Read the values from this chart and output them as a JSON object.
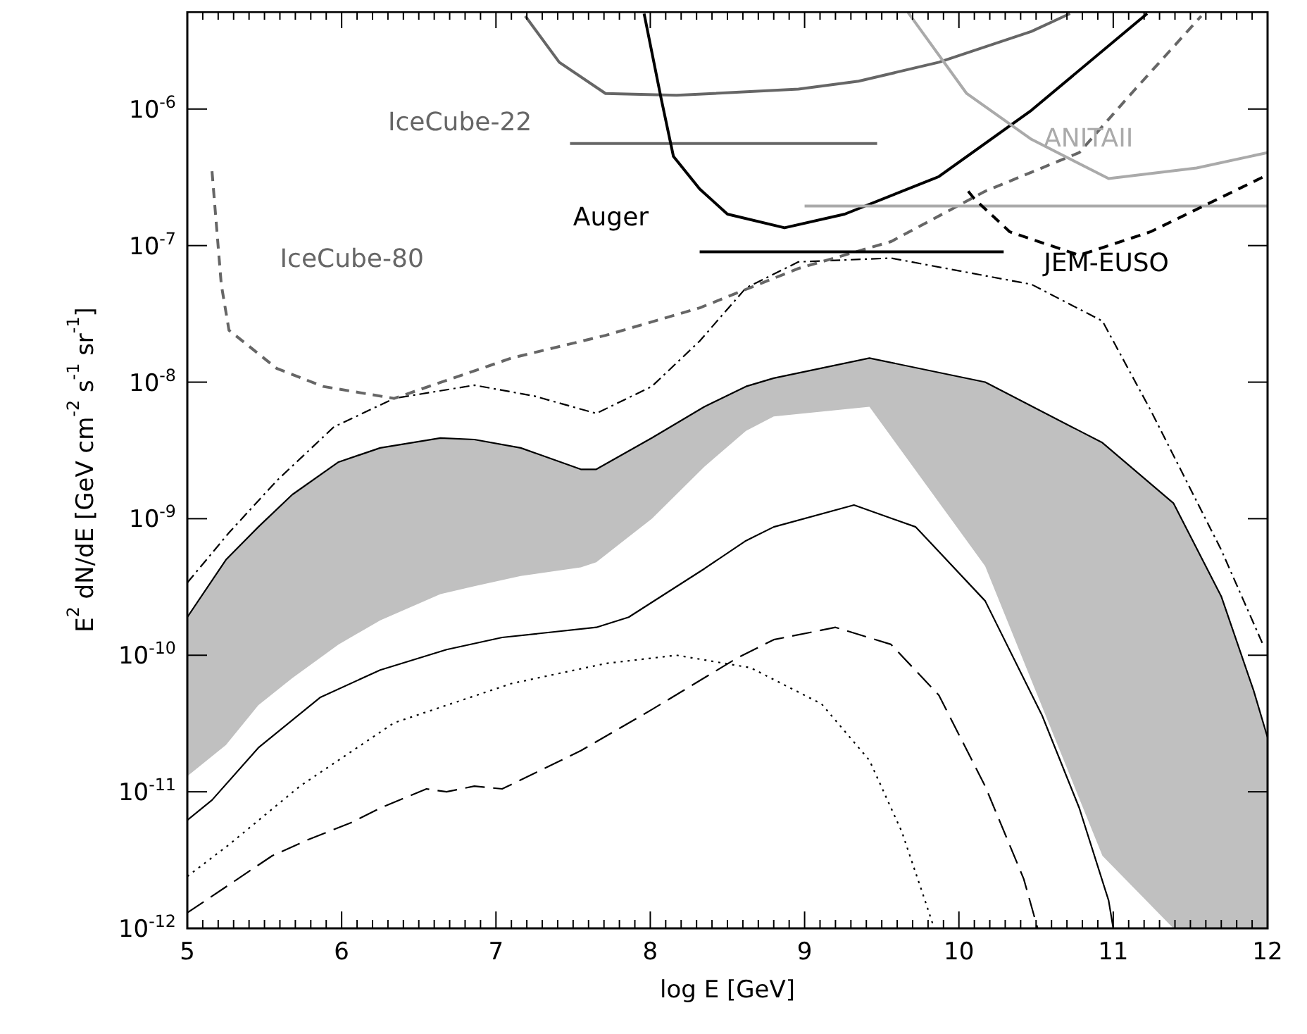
{
  "chart_data": {
    "type": "line",
    "xlabel": "log E [GeV]",
    "ylabel": "E$^{2}$ dN/dE [GeV cm$^{-2}$ s$^{-1}$ sr$^{-1}$]",
    "xlim": [
      5,
      12
    ],
    "xticks": [
      5,
      {
        "value": 5.1,
        "label": null
      },
      {
        "value": 5.2,
        "label": null
      },
      {
        "value": 5.3,
        "label": null
      },
      {
        "value": 5.4,
        "label": null
      },
      {
        "value": 5.5,
        "label": null
      },
      {
        "value": 5.6,
        "label": null
      },
      {
        "value": 5.7,
        "label": null
      },
      {
        "value": 5.8,
        "label": null
      },
      {
        "value": 5.9,
        "label": null
      },
      6,
      {
        "value": 6.1,
        "label": null
      },
      {
        "value": 6.2,
        "label": null
      },
      {
        "value": 6.3,
        "label": null
      },
      {
        "value": 6.4,
        "label": null
      },
      {
        "value": 6.5,
        "label": null
      },
      {
        "value": 6.6,
        "label": null
      },
      {
        "value": 6.7,
        "label": null
      },
      {
        "value": 6.8,
        "label": null
      },
      {
        "value": 6.9,
        "label": null
      },
      7,
      {
        "value": 7.1,
        "label": null
      },
      {
        "value": 7.2,
        "label": null
      },
      {
        "value": 7.3,
        "label": null
      },
      {
        "value": 7.4,
        "label": null
      },
      {
        "value": 7.5,
        "label": null
      },
      {
        "value": 7.6,
        "label": null
      },
      {
        "value": 7.7,
        "label": null
      },
      {
        "value": 7.8,
        "label": null
      },
      {
        "value": 7.9,
        "label": null
      },
      8,
      {
        "value": 8.1,
        "label": null
      },
      {
        "value": 8.2,
        "label": null
      },
      {
        "value": 8.3,
        "label": null
      },
      {
        "value": 8.4,
        "label": null
      },
      {
        "value": 8.5,
        "label": null
      },
      {
        "value": 8.6,
        "label": null
      },
      {
        "value": 8.7,
        "label": null
      },
      {
        "value": 8.8,
        "label": null
      },
      {
        "value": 8.9,
        "label": null
      },
      9,
      {
        "value": 9.1,
        "label": null
      },
      {
        "value": 9.2,
        "label": null
      },
      {
        "value": 9.3,
        "label": null
      },
      {
        "value": 9.4,
        "label": null
      },
      {
        "value": 9.5,
        "label": null
      },
      {
        "value": 9.6,
        "label": null
      },
      {
        "value": 9.7,
        "label": null
      },
      {
        "value": 9.8,
        "label": null
      },
      {
        "value": 9.9,
        "label": null
      },
      10,
      {
        "value": 10.1,
        "label": null
      },
      {
        "value": 10.2,
        "label": null
      },
      {
        "value": 10.3,
        "label": null
      },
      {
        "value": 10.4,
        "label": null
      },
      {
        "value": 10.5,
        "label": null
      },
      {
        "value": 10.6,
        "label": null
      },
      {
        "value": 10.7,
        "label": null
      },
      {
        "value": 10.8,
        "label": null
      },
      {
        "value": 10.9,
        "label": null
      },
      11,
      {
        "value": 11.1,
        "label": null
      },
      {
        "value": 11.2,
        "label": null
      },
      {
        "value": 11.3,
        "label": null
      },
      {
        "value": 11.4,
        "label": null
      },
      {
        "value": 11.5,
        "label": null
      },
      {
        "value": 11.6,
        "label": null
      },
      {
        "value": 11.7,
        "label": null
      },
      {
        "value": 11.8,
        "label": null
      },
      {
        "value": 11.9,
        "label": null
      },
      12
    ],
    "ylim": [
      1e-12,
      5.2e-06
    ],
    "log": "y",
    "yticks": [
      {
        "value": 1e-12,
        "label": "10$^{-12}$"
      },
      {
        "value": 1e-11,
        "label": "10$^{-11}$"
      },
      {
        "value": 1e-10,
        "label": "10$^{-10}$"
      },
      {
        "value": 1e-09,
        "label": "10$^{-9}$"
      },
      {
        "value": 1e-08,
        "label": "10$^{-8}$"
      },
      {
        "value": 1e-07,
        "label": "10$^{-7}$"
      },
      {
        "value": 1e-06,
        "label": "10$^{-6}$"
      }
    ],
    "grid": false,
    "legend": false,
    "marker": "none",
    "series": [
      {
        "type": "line",
        "color": "#000000",
        "line_style": "solid",
        "upper": [
          1.9e-10,
          5e-10,
          8.7e-10,
          1.5e-09,
          2.6e-09,
          3.3e-09,
          3.9e-09,
          3.8e-09,
          3.3e-09,
          2.3e-09,
          2.3e-09,
          3.9e-09,
          6.6e-09,
          9.3e-09,
          1.07e-08,
          1.5e-08,
          1e-08,
          3.6e-09,
          1.3e-09,
          2.7e-10,
          5.5e-11,
          2.5e-11
        ],
        "x": [
          5,
          5.25,
          5.46,
          5.68,
          5.98,
          6.25,
          6.64,
          6.86,
          7.16,
          7.55,
          7.65,
          8.01,
          8.35,
          8.62,
          8.8,
          9.42,
          10.17,
          10.93,
          11.39,
          11.7,
          11.91,
          12
        ],
        "values": [
          1.9e-10,
          5e-10,
          8.7e-10,
          1.5e-09,
          2.6e-09,
          3.3e-09,
          3.9e-09,
          3.8e-09,
          3.3e-09,
          2.3e-09,
          2.3e-09,
          3.9e-09,
          6.6e-09,
          9.3e-09,
          1.07e-08,
          1.5e-08,
          1e-08,
          3.6e-09,
          1.3e-09,
          2.7e-10,
          5.5e-11,
          2.5e-11
        ],
        "lower": [
          1.3e-11,
          2.2e-11,
          4.3e-11,
          6.8e-11,
          1.2e-10,
          1.8e-10,
          2.8e-10,
          3.2e-10,
          3.8e-10,
          4.4e-10,
          4.8e-10,
          1e-09,
          2.4e-09,
          4.4e-09,
          5.6e-09,
          6.6e-09,
          4.5e-10,
          3.4e-12,
          1e-12,
          1e-12,
          1e-12,
          1e-12
        ]
      },
      {
        "color": "#000000",
        "line_style": "solid",
        "x": [
          5,
          5.16,
          5.46,
          5.86,
          6.25,
          6.68,
          7.04,
          7.65,
          7.86,
          8.35,
          8.62,
          8.8,
          9.32,
          9.72,
          10.17,
          10.54,
          10.78,
          10.97,
          11.0
        ],
        "values": [
          6.2e-12,
          8.7e-12,
          2.1e-11,
          4.9e-11,
          7.8e-11,
          1.1e-10,
          1.35e-10,
          1.6e-10,
          1.9e-10,
          4.3e-10,
          6.9e-10,
          8.7e-10,
          1.26e-09,
          8.7e-10,
          2.5e-10,
          3.6e-11,
          7.6e-12,
          1.6e-12,
          1e-12
        ]
      },
      {
        "color": "#000000",
        "line_style": "dotted",
        "x": [
          5,
          5.27,
          5.73,
          6.34,
          7.1,
          7.71,
          8.17,
          8.65,
          9.11,
          9.42,
          9.63,
          9.78,
          9.84
        ],
        "values": [
          2.4e-12,
          4.1e-12,
          1.1e-11,
          3.2e-11,
          6.2e-11,
          8.7e-11,
          1e-10,
          8.1e-11,
          4.4e-11,
          1.7e-11,
          5.1e-12,
          1.6e-12,
          1e-12
        ]
      },
      {
        "color": "#000000",
        "line_style": "longdash",
        "x": [
          5,
          5.55,
          5.77,
          6.07,
          6.25,
          6.55,
          6.68,
          6.86,
          7.04,
          7.55,
          8.01,
          8.56,
          8.8,
          9.2,
          9.56,
          9.87,
          10.17,
          10.42,
          10.51
        ],
        "values": [
          1.3e-12,
          3.4e-12,
          4.4e-12,
          6e-12,
          7.6e-12,
          1.05e-11,
          1e-11,
          1.1e-11,
          1.05e-11,
          2e-11,
          4e-11,
          9.5e-11,
          1.3e-10,
          1.6e-10,
          1.2e-10,
          5.1e-11,
          1.1e-11,
          2.3e-12,
          1e-12
        ]
      },
      {
        "color": "#000000",
        "line_style": "dashdot",
        "x": [
          5,
          5.27,
          5.58,
          5.95,
          6.34,
          6.86,
          7.25,
          7.65,
          8.01,
          8.32,
          8.62,
          8.96,
          9.56,
          10.47,
          10.93,
          11.24,
          11.7,
          11.97
        ],
        "values": [
          3.4e-10,
          7.9e-10,
          1.9e-09,
          4.7e-09,
          7.6e-09,
          9.5e-09,
          7.9e-09,
          5.9e-09,
          9.3e-09,
          2e-08,
          4.9e-08,
          7.6e-08,
          8.1e-08,
          5.2e-08,
          2.8e-08,
          6.3e-09,
          5.9e-10,
          1.2e-10
        ]
      },
      {
        "name": "IceCube-80",
        "color": "#666666",
        "line_style": "dashed",
        "x": [
          5.16,
          5.22,
          5.27,
          5.58,
          5.88,
          6.34,
          7.1,
          7.71,
          8.32,
          8.96,
          9.56,
          10.17,
          10.78,
          11.09,
          11.57
        ],
        "values": [
          3.5e-07,
          5.2e-08,
          2.4e-08,
          1.26e-08,
          9.3e-09,
          7.6e-09,
          1.5e-08,
          2.2e-08,
          3.5e-08,
          6.8e-08,
          1.07e-07,
          2.5e-07,
          4.8e-07,
          1.2e-06,
          4.8e-06
        ]
      },
      {
        "color": "#666666",
        "line_style": "solid",
        "x": [
          7.19,
          7.41,
          7.71,
          8.17,
          8.96,
          9.35,
          9.87,
          10.47,
          10.72
        ],
        "values": [
          4.8e-06,
          2.2e-06,
          1.3e-06,
          1.26e-06,
          1.4e-06,
          1.6e-06,
          2.2e-06,
          3.7e-06,
          5e-06
        ]
      },
      {
        "name": "IceCube-22",
        "color": "#666666",
        "line_style": "solid",
        "x": [
          7.48,
          9.47
        ],
        "values": [
          5.6e-07,
          5.6e-07
        ]
      },
      {
        "name": "Auger",
        "color": "#000000",
        "line_style": "solid",
        "x": [
          7.96,
          8.07,
          8.15,
          8.32,
          8.5,
          8.87,
          9.26,
          9.87,
          10.47,
          11.22
        ],
        "values": [
          5e-06,
          1.2e-06,
          4.5e-07,
          2.6e-07,
          1.7e-07,
          1.35e-07,
          1.7e-07,
          3.2e-07,
          9.8e-07,
          5e-06
        ]
      },
      {
        "color": "#000000",
        "line_style": "solid",
        "x": [
          8.32,
          10.29
        ],
        "values": [
          9e-08,
          9e-08
        ]
      },
      {
        "name": "ANITAII",
        "color": "#aaaaaa",
        "line_style": "solid",
        "x": [
          9.67,
          10.05,
          10.47,
          10.97,
          11.54,
          12
        ],
        "values": [
          5.1e-06,
          1.3e-06,
          6e-07,
          3.1e-07,
          3.7e-07,
          4.8e-07
        ]
      },
      {
        "color": "#aaaaaa",
        "line_style": "solid",
        "x": [
          9.0,
          12
        ],
        "values": [
          1.95e-07,
          1.95e-07
        ]
      },
      {
        "name": "JEM-EUSO",
        "color": "#000000",
        "line_style": "dashed",
        "x": [
          10.06,
          10.1,
          10.33,
          10.78,
          11.24,
          12
        ],
        "values": [
          2.5e-07,
          2.2e-07,
          1.26e-07,
          8.5e-08,
          1.26e-07,
          3.3e-07
        ]
      }
    ]
  }
}
